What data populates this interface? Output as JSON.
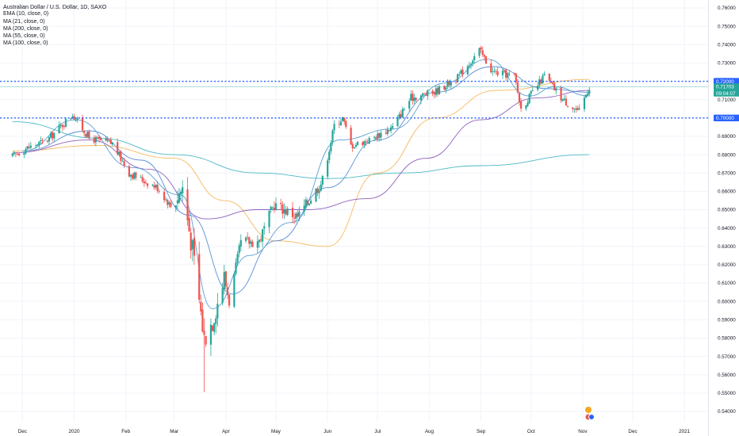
{
  "legend": {
    "title": "Australian Dollar / U.S. Dollar, 1D, SAXO",
    "indicators": [
      {
        "label": "EMA (10, close, 0)",
        "color": "#5a9fd4"
      },
      {
        "label": "MA (21, close, 0)",
        "color": "#5b8fd8"
      },
      {
        "label": "MA (200, close, 0)",
        "color": "#4bb8c4"
      },
      {
        "label": "MA (55, close, 0)",
        "color": "#8e5fbf"
      },
      {
        "label": "MA (100, close, 0)",
        "color": "#f5b95f"
      }
    ]
  },
  "colors": {
    "up": "#26a69a",
    "down": "#ef5350",
    "level_line": "#2962ff",
    "price_tag": "#26a69a",
    "grid": "#f0f3fa"
  },
  "chart_data": {
    "type": "candlestick",
    "title": "Australian Dollar / U.S. Dollar, 1D, SAXO",
    "instrument": "AUDUSD",
    "interval": "1D",
    "y_axis": {
      "ticks": [
        "0.76000",
        "0.75000",
        "0.74000",
        "0.73000",
        "0.72000",
        "0.71000",
        "0.70000",
        "0.69000",
        "0.68000",
        "0.67000",
        "0.66000",
        "0.65000",
        "0.64000",
        "0.63000",
        "0.62000",
        "0.61000",
        "0.60000",
        "0.59000",
        "0.58000",
        "0.57000",
        "0.56000",
        "0.55000",
        "0.54000"
      ],
      "range": [
        0.535,
        0.763
      ]
    },
    "x_axis": {
      "labels": [
        "Dec",
        "2020",
        "Feb",
        "Mar",
        "Apr",
        "May",
        "Jun",
        "Jul",
        "Aug",
        "Sep",
        "Oct",
        "Nov",
        "Dec",
        "2021"
      ]
    },
    "horizontal_levels": [
      0.72,
      0.7
    ],
    "price_labels": [
      {
        "text": "0.72000",
        "value": 0.72,
        "style": "level"
      },
      {
        "text": "0.71703",
        "value": 0.71703,
        "style": "last"
      },
      {
        "text": "09:04:07",
        "value": 0.7135,
        "style": "last"
      },
      {
        "text": "0.70000",
        "value": 0.7,
        "style": "level"
      }
    ],
    "close_path": [
      {
        "date": "2019-11-25",
        "close": 0.679
      },
      {
        "date": "2019-12-02",
        "close": 0.683
      },
      {
        "date": "2019-12-16",
        "close": 0.688
      },
      {
        "date": "2019-12-31",
        "close": 0.702
      },
      {
        "date": "2020-01-10",
        "close": 0.689
      },
      {
        "date": "2020-01-24",
        "close": 0.686
      },
      {
        "date": "2020-02-03",
        "close": 0.67
      },
      {
        "date": "2020-02-20",
        "close": 0.662
      },
      {
        "date": "2020-02-28",
        "close": 0.652
      },
      {
        "date": "2020-03-06",
        "close": 0.662
      },
      {
        "date": "2020-03-12",
        "close": 0.628
      },
      {
        "date": "2020-03-19",
        "close": 0.58
      },
      {
        "date": "2020-03-24",
        "close": 0.59
      },
      {
        "date": "2020-03-31",
        "close": 0.613
      },
      {
        "date": "2020-04-03",
        "close": 0.6
      },
      {
        "date": "2020-04-10",
        "close": 0.632
      },
      {
        "date": "2020-04-21",
        "close": 0.633
      },
      {
        "date": "2020-04-30",
        "close": 0.653
      },
      {
        "date": "2020-05-14",
        "close": 0.646
      },
      {
        "date": "2020-05-29",
        "close": 0.666
      },
      {
        "date": "2020-06-05",
        "close": 0.696
      },
      {
        "date": "2020-06-10",
        "close": 0.7
      },
      {
        "date": "2020-06-15",
        "close": 0.685
      },
      {
        "date": "2020-06-26",
        "close": 0.688
      },
      {
        "date": "2020-07-10",
        "close": 0.695
      },
      {
        "date": "2020-07-21",
        "close": 0.711
      },
      {
        "date": "2020-08-04",
        "close": 0.714
      },
      {
        "date": "2020-08-18",
        "close": 0.722
      },
      {
        "date": "2020-08-31",
        "close": 0.737
      },
      {
        "date": "2020-09-08",
        "close": 0.725
      },
      {
        "date": "2020-09-21",
        "close": 0.723
      },
      {
        "date": "2020-09-25",
        "close": 0.705
      },
      {
        "date": "2020-10-09",
        "close": 0.723
      },
      {
        "date": "2020-10-20",
        "close": 0.71
      },
      {
        "date": "2020-10-30",
        "close": 0.703
      },
      {
        "date": "2020-11-03",
        "close": 0.713
      },
      {
        "date": "2020-11-05",
        "close": 0.717
      }
    ],
    "moving_averages": [
      {
        "name": "MA (200, close, 0)",
        "color": "#4bb8c4",
        "points": [
          {
            "date": "2019-11-25",
            "value": 0.698
          },
          {
            "date": "2020-01-15",
            "value": 0.689
          },
          {
            "date": "2020-03-01",
            "value": 0.68
          },
          {
            "date": "2020-04-20",
            "value": 0.67
          },
          {
            "date": "2020-06-01",
            "value": 0.667
          },
          {
            "date": "2020-07-15",
            "value": 0.67
          },
          {
            "date": "2020-09-01",
            "value": 0.674
          },
          {
            "date": "2020-11-05",
            "value": 0.68
          }
        ]
      },
      {
        "name": "MA (100, close, 0)",
        "color": "#f5b95f",
        "points": [
          {
            "date": "2019-11-25",
            "value": 0.682
          },
          {
            "date": "2020-01-15",
            "value": 0.685
          },
          {
            "date": "2020-03-01",
            "value": 0.678
          },
          {
            "date": "2020-03-31",
            "value": 0.655
          },
          {
            "date": "2020-05-01",
            "value": 0.633
          },
          {
            "date": "2020-06-01",
            "value": 0.63
          },
          {
            "date": "2020-07-01",
            "value": 0.67
          },
          {
            "date": "2020-08-05",
            "value": 0.7
          },
          {
            "date": "2020-09-10",
            "value": 0.715
          },
          {
            "date": "2020-11-05",
            "value": 0.721
          }
        ]
      },
      {
        "name": "MA (55, close, 0)",
        "color": "#8e5fbf",
        "points": [
          {
            "date": "2019-11-25",
            "value": 0.681
          },
          {
            "date": "2020-01-10",
            "value": 0.688
          },
          {
            "date": "2020-02-15",
            "value": 0.672
          },
          {
            "date": "2020-03-20",
            "value": 0.645
          },
          {
            "date": "2020-04-20",
            "value": 0.65
          },
          {
            "date": "2020-05-20",
            "value": 0.65
          },
          {
            "date": "2020-06-25",
            "value": 0.656
          },
          {
            "date": "2020-07-30",
            "value": 0.678
          },
          {
            "date": "2020-09-01",
            "value": 0.699
          },
          {
            "date": "2020-10-05",
            "value": 0.711
          },
          {
            "date": "2020-11-05",
            "value": 0.715
          }
        ]
      },
      {
        "name": "MA (21, close, 0)",
        "color": "#5b8fd8",
        "points": [
          {
            "date": "2019-12-01",
            "value": 0.682
          },
          {
            "date": "2020-01-10",
            "value": 0.693
          },
          {
            "date": "2020-02-10",
            "value": 0.677
          },
          {
            "date": "2020-03-10",
            "value": 0.647
          },
          {
            "date": "2020-04-05",
            "value": 0.604
          },
          {
            "date": "2020-05-01",
            "value": 0.633
          },
          {
            "date": "2020-06-01",
            "value": 0.662
          },
          {
            "date": "2020-07-01",
            "value": 0.688
          },
          {
            "date": "2020-08-05",
            "value": 0.714
          },
          {
            "date": "2020-09-08",
            "value": 0.728
          },
          {
            "date": "2020-10-10",
            "value": 0.716
          },
          {
            "date": "2020-11-05",
            "value": 0.714
          }
        ]
      },
      {
        "name": "EMA (10, close, 0)",
        "color": "#5a9fd4",
        "points": [
          {
            "date": "2019-12-01",
            "value": 0.682
          },
          {
            "date": "2020-01-02",
            "value": 0.699
          },
          {
            "date": "2020-02-05",
            "value": 0.673
          },
          {
            "date": "2020-03-05",
            "value": 0.658
          },
          {
            "date": "2020-03-24",
            "value": 0.596
          },
          {
            "date": "2020-04-15",
            "value": 0.625
          },
          {
            "date": "2020-05-10",
            "value": 0.643
          },
          {
            "date": "2020-06-08",
            "value": 0.688
          },
          {
            "date": "2020-07-10",
            "value": 0.694
          },
          {
            "date": "2020-08-10",
            "value": 0.719
          },
          {
            "date": "2020-09-05",
            "value": 0.732
          },
          {
            "date": "2020-09-30",
            "value": 0.712
          },
          {
            "date": "2020-10-15",
            "value": 0.717
          },
          {
            "date": "2020-11-05",
            "value": 0.712
          }
        ]
      }
    ]
  }
}
